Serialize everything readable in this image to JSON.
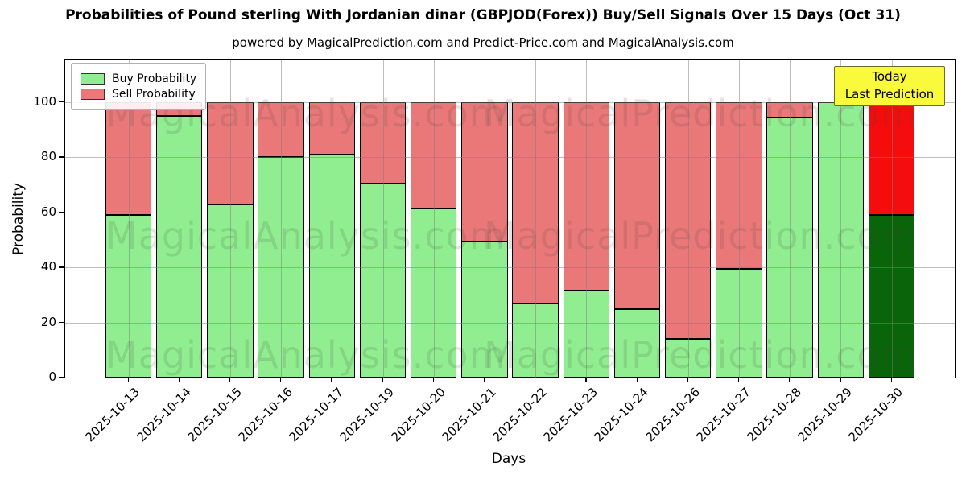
{
  "watermark": {
    "left": "MagicalAnalysis.com",
    "right": "MagicalPrediction.com"
  },
  "annotation": {
    "lines": [
      "Today",
      "Last Prediction"
    ],
    "bg_color": "#FAFA3C",
    "border_color": "#6B6B2A"
  },
  "axis": {
    "spine_color": "#000000",
    "grid_color": "#7d7d7d"
  },
  "chart_data": {
    "type": "bar",
    "stacked": true,
    "title": "Probabilities of Pound sterling With Jordanian dinar (GBPJOD(Forex)) Buy/Sell Signals Over 15 Days (Oct 31)",
    "subtitle": "powered by MagicalPrediction.com and Predict-Price.com and MagicalAnalysis.com",
    "xlabel": "Days",
    "ylabel": "Probability",
    "ylim": [
      0,
      115.5
    ],
    "yticks": [
      0,
      20,
      40,
      60,
      80,
      100
    ],
    "grid": true,
    "dashed_hline_y": 111,
    "legend_position": "upper left",
    "categories": [
      "2025-10-13",
      "2025-10-14",
      "2025-10-15",
      "2025-10-16",
      "2025-10-17",
      "2025-10-19",
      "2025-10-20",
      "2025-10-21",
      "2025-10-22",
      "2025-10-23",
      "2025-10-24",
      "2025-10-26",
      "2025-10-27",
      "2025-10-28",
      "2025-10-29",
      "2025-10-30"
    ],
    "series": [
      {
        "name": "Buy Probability",
        "color": "#90EE90",
        "values": [
          59,
          95,
          63,
          80,
          81,
          70.5,
          61.5,
          49.5,
          27,
          31.5,
          25,
          14,
          39.5,
          94.5,
          100,
          59
        ]
      },
      {
        "name": "Sell Probability",
        "color": "#EA7878",
        "values": [
          41,
          5,
          37,
          20,
          19,
          29.5,
          38.5,
          50.5,
          73,
          68.5,
          75,
          86,
          60.5,
          5.5,
          0,
          41
        ]
      }
    ],
    "today_bar": {
      "index": 15,
      "buy_color": "#0A640A",
      "sell_color": "#F50D0D"
    }
  }
}
